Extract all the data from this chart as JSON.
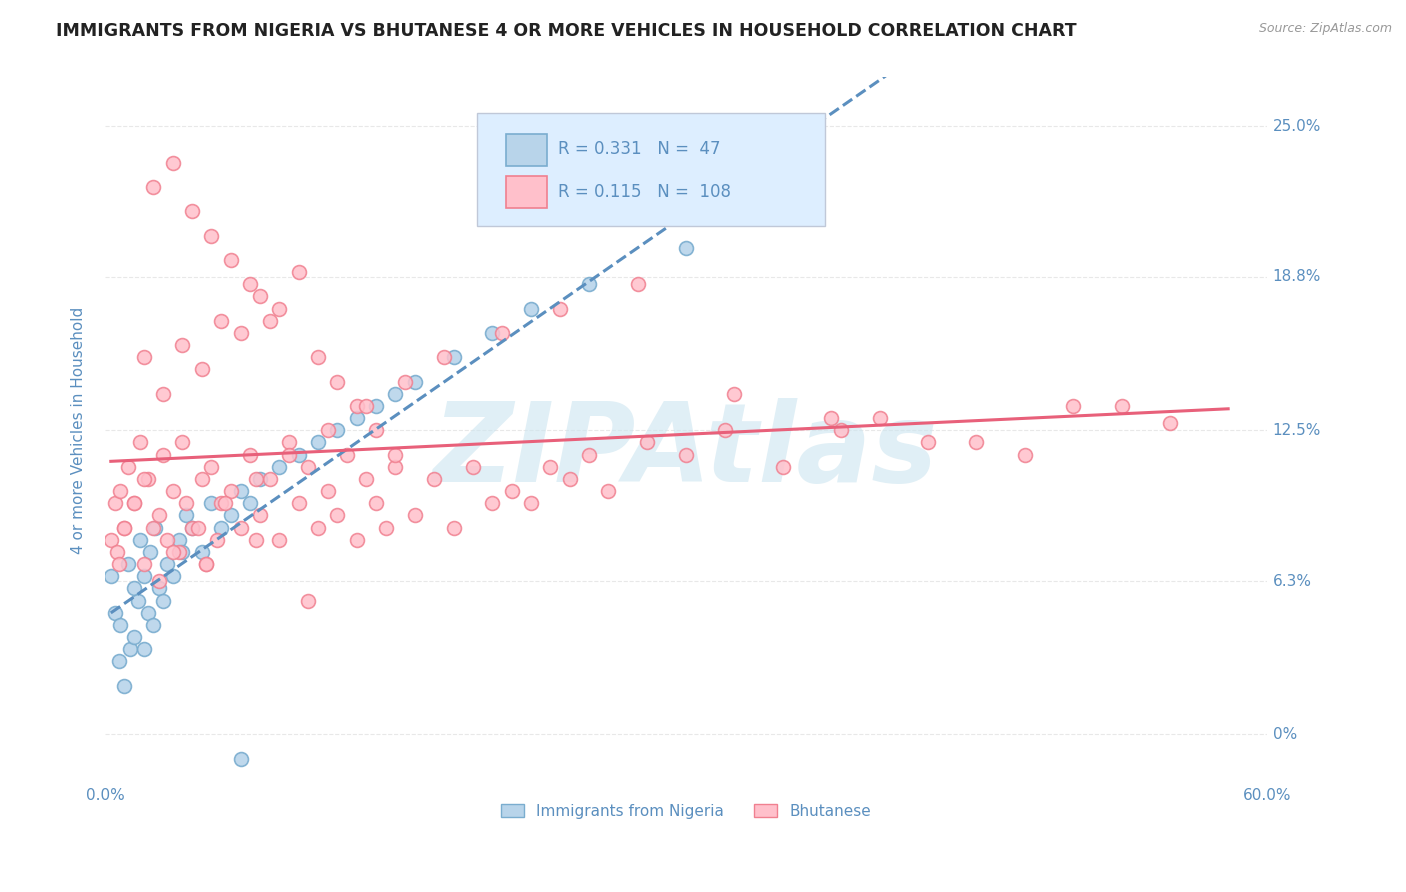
{
  "title": "IMMIGRANTS FROM NIGERIA VS BHUTANESE 4 OR MORE VEHICLES IN HOUSEHOLD CORRELATION CHART",
  "source_text": "Source: ZipAtlas.com",
  "ylabel": "4 or more Vehicles in Household",
  "xlim": [
    0.0,
    60.0
  ],
  "ylim": [
    -2.0,
    27.0
  ],
  "ytick_vals": [
    0.0,
    6.3,
    12.5,
    18.8,
    25.0
  ],
  "ytick_labels": [
    "0%",
    "6.3%",
    "12.5%",
    "18.8%",
    "25.0%"
  ],
  "series": [
    {
      "label": "Immigrants from Nigeria",
      "R": 0.331,
      "N": 47,
      "color": "#b8d4ea",
      "edge_color": "#7aadcf",
      "line_color": "#5b8fbf",
      "line_style": "--"
    },
    {
      "label": "Bhutanese",
      "R": 0.115,
      "N": 108,
      "color": "#ffc0cb",
      "edge_color": "#f08090",
      "line_color": "#e8607a",
      "line_style": "-"
    }
  ],
  "nigeria_x": [
    0.3,
    0.5,
    0.7,
    0.8,
    1.0,
    1.2,
    1.3,
    1.5,
    1.5,
    1.7,
    1.8,
    2.0,
    2.0,
    2.2,
    2.3,
    2.5,
    2.6,
    2.8,
    3.0,
    3.2,
    3.5,
    3.8,
    4.0,
    4.2,
    4.5,
    5.0,
    5.5,
    6.0,
    6.5,
    7.0,
    7.5,
    8.0,
    9.0,
    10.0,
    11.0,
    12.0,
    13.0,
    14.0,
    15.0,
    16.0,
    18.0,
    20.0,
    22.0,
    25.0,
    30.0,
    35.0,
    7.0
  ],
  "nigeria_y": [
    6.5,
    5.0,
    3.0,
    4.5,
    2.0,
    7.0,
    3.5,
    6.0,
    4.0,
    5.5,
    8.0,
    3.5,
    6.5,
    5.0,
    7.5,
    4.5,
    8.5,
    6.0,
    5.5,
    7.0,
    6.5,
    8.0,
    7.5,
    9.0,
    8.5,
    7.5,
    9.5,
    8.5,
    9.0,
    10.0,
    9.5,
    10.5,
    11.0,
    11.5,
    12.0,
    12.5,
    13.0,
    13.5,
    14.0,
    14.5,
    15.5,
    16.5,
    17.5,
    18.5,
    20.0,
    22.0,
    -1.0
  ],
  "bhutan_x": [
    0.3,
    0.5,
    0.6,
    0.8,
    1.0,
    1.2,
    1.5,
    1.8,
    2.0,
    2.2,
    2.5,
    2.8,
    3.0,
    3.2,
    3.5,
    3.8,
    4.0,
    4.2,
    4.5,
    5.0,
    5.2,
    5.5,
    5.8,
    6.0,
    6.5,
    7.0,
    7.5,
    8.0,
    8.5,
    9.0,
    9.5,
    10.0,
    10.5,
    11.0,
    11.5,
    12.0,
    12.5,
    13.0,
    13.5,
    14.0,
    14.5,
    15.0,
    16.0,
    17.0,
    18.0,
    19.0,
    20.0,
    21.0,
    22.0,
    23.0,
    24.0,
    25.0,
    26.0,
    28.0,
    30.0,
    32.0,
    35.0,
    38.0,
    40.0,
    45.0,
    50.0,
    55.0,
    2.0,
    3.0,
    4.0,
    5.0,
    6.0,
    7.0,
    8.0,
    9.0,
    10.0,
    11.0,
    12.0,
    13.0,
    14.0,
    15.0,
    4.5,
    5.5,
    6.5,
    7.5,
    8.5,
    2.5,
    3.5,
    0.7,
    1.0,
    1.5,
    2.0,
    3.5,
    4.8,
    6.2,
    7.8,
    9.5,
    11.5,
    13.5,
    15.5,
    17.5,
    20.5,
    23.5,
    27.5,
    32.5,
    37.5,
    42.5,
    47.5,
    52.5,
    2.8,
    5.2,
    7.8,
    10.5
  ],
  "bhutan_y": [
    8.0,
    9.5,
    7.5,
    10.0,
    8.5,
    11.0,
    9.5,
    12.0,
    7.0,
    10.5,
    8.5,
    9.0,
    11.5,
    8.0,
    10.0,
    7.5,
    12.0,
    9.5,
    8.5,
    10.5,
    7.0,
    11.0,
    8.0,
    9.5,
    10.0,
    8.5,
    11.5,
    9.0,
    10.5,
    8.0,
    12.0,
    9.5,
    11.0,
    8.5,
    10.0,
    9.0,
    11.5,
    8.0,
    10.5,
    9.5,
    8.5,
    11.0,
    9.0,
    10.5,
    8.5,
    11.0,
    9.5,
    10.0,
    9.5,
    11.0,
    10.5,
    11.5,
    10.0,
    12.0,
    11.5,
    12.5,
    11.0,
    12.5,
    13.0,
    12.0,
    13.5,
    12.8,
    15.5,
    14.0,
    16.0,
    15.0,
    17.0,
    16.5,
    18.0,
    17.5,
    19.0,
    15.5,
    14.5,
    13.5,
    12.5,
    11.5,
    21.5,
    20.5,
    19.5,
    18.5,
    17.0,
    22.5,
    23.5,
    7.0,
    8.5,
    9.5,
    10.5,
    7.5,
    8.5,
    9.5,
    10.5,
    11.5,
    12.5,
    13.5,
    14.5,
    15.5,
    16.5,
    17.5,
    18.5,
    14.0,
    13.0,
    12.0,
    11.5,
    13.5,
    6.3,
    7.0,
    8.0,
    5.5
  ],
  "watermark": "ZIPAtlas",
  "watermark_color": "#cce5f0",
  "background_color": "#ffffff",
  "grid_color": "#e8e8e8",
  "title_color": "#222222",
  "axis_label_color": "#5b8fbf",
  "tick_label_color": "#5b8fbf",
  "legend_box_color": "#ddeeff"
}
